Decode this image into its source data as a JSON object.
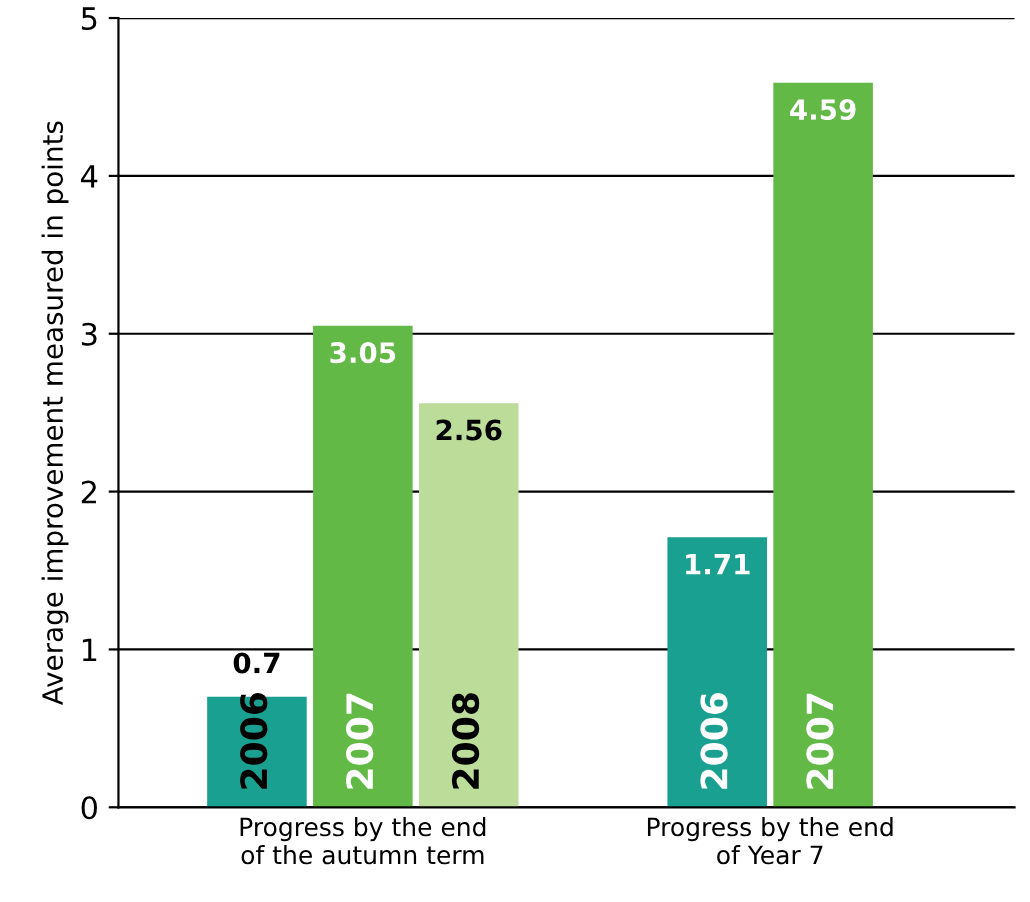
{
  "chart_data": {
    "type": "bar",
    "ylabel": "Average improvement measured in points",
    "categories": [
      "Progress by the end\nof the autumn term",
      "Progress by the end\nof Year 7"
    ],
    "series": [
      {
        "name": "2006",
        "color": "#1aa090",
        "values": [
          0.7,
          1.71
        ]
      },
      {
        "name": "2007",
        "color": "#62b946",
        "values": [
          3.05,
          4.59
        ]
      },
      {
        "name": "2008",
        "color": "#bcdc9a",
        "values": [
          2.56,
          null
        ]
      }
    ],
    "ylim": [
      0,
      5
    ],
    "yticks": [
      0,
      1,
      2,
      3,
      4,
      5
    ],
    "grid": "y",
    "legend": false,
    "data_labels": true
  }
}
